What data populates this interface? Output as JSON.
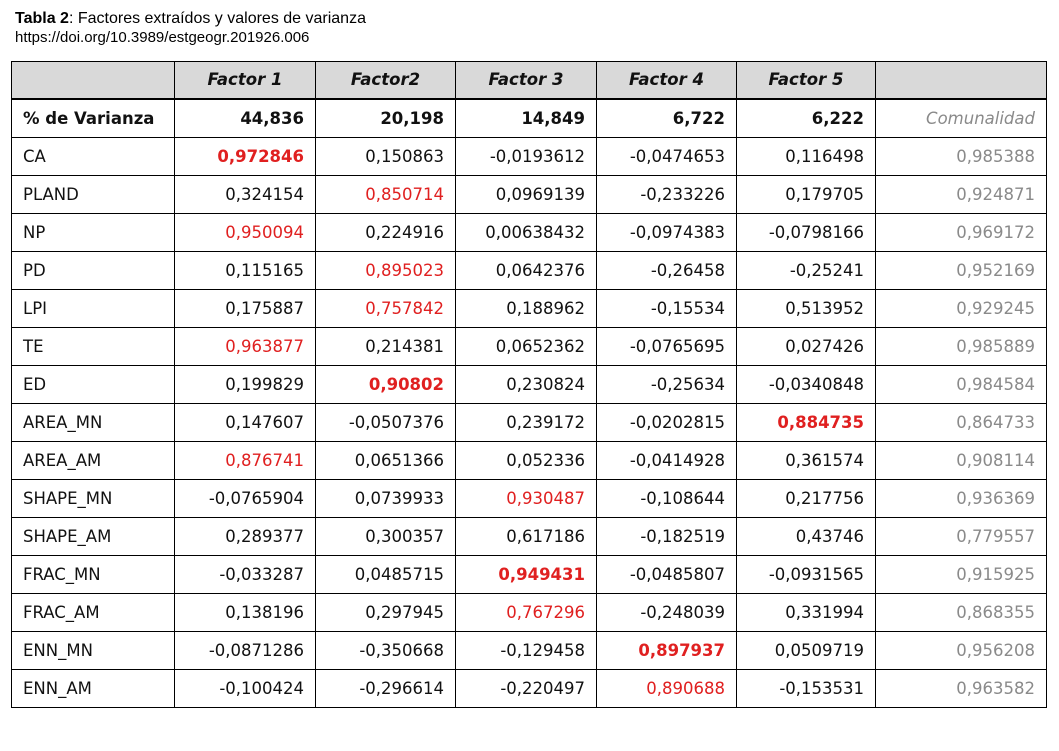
{
  "caption": {
    "title_bold": "Tabla 2",
    "title_rest": ": Factores extraídos y valores de varianza",
    "doi": "https://doi.org/10.3989/estgeogr.201926.006"
  },
  "table": {
    "headers": [
      "",
      "Factor 1",
      "Factor2",
      "Factor 3",
      "Factor 4",
      "Factor 5",
      ""
    ],
    "variance_row": {
      "label": "% de Varianza",
      "values": [
        "44,836",
        "20,198",
        "14,849",
        "6,722",
        "6,222"
      ],
      "communality_label": "Comunalidad"
    },
    "rows": [
      {
        "label": "CA",
        "values": [
          "0,972846",
          "0,150863",
          "-0,0193612",
          "-0,0474653",
          "0,116498"
        ],
        "communality": "0,985388"
      },
      {
        "label": "PLAND",
        "values": [
          "0,324154",
          "0,850714",
          "0,0969139",
          "-0,233226",
          "0,179705"
        ],
        "communality": "0,924871"
      },
      {
        "label": "NP",
        "values": [
          "0,950094",
          "0,224916",
          "0,00638432",
          "-0,0974383",
          "-0,0798166"
        ],
        "communality": "0,969172"
      },
      {
        "label": "PD",
        "values": [
          "0,115165",
          "0,895023",
          "0,0642376",
          "-0,26458",
          "-0,25241"
        ],
        "communality": "0,952169"
      },
      {
        "label": "LPI",
        "values": [
          "0,175887",
          "0,757842",
          "0,188962",
          "-0,15534",
          "0,513952"
        ],
        "communality": "0,929245"
      },
      {
        "label": "TE",
        "values": [
          "0,963877",
          "0,214381",
          "0,0652362",
          "-0,0765695",
          "0,027426"
        ],
        "communality": "0,985889"
      },
      {
        "label": "ED",
        "values": [
          "0,199829",
          "0,90802",
          "0,230824",
          "-0,25634",
          "-0,0340848"
        ],
        "communality": "0,984584"
      },
      {
        "label": "AREA_MN",
        "values": [
          "0,147607",
          "-0,0507376",
          "0,239172",
          "-0,0202815",
          "0,884735"
        ],
        "communality": "0,864733"
      },
      {
        "label": "AREA_AM",
        "values": [
          "0,876741",
          "0,0651366",
          "0,052336",
          "-0,0414928",
          "0,361574"
        ],
        "communality": "0,908114"
      },
      {
        "label": "SHAPE_MN",
        "values": [
          "-0,0765904",
          "0,0739933",
          "0,930487",
          "-0,108644",
          "0,217756"
        ],
        "communality": "0,936369"
      },
      {
        "label": "SHAPE_AM",
        "values": [
          "0,289377",
          "0,300357",
          "0,617186",
          "-0,182519",
          "0,43746"
        ],
        "communality": "0,779557"
      },
      {
        "label": "FRAC_MN",
        "values": [
          "-0,033287",
          "0,0485715",
          "0,949431",
          "-0,0485807",
          "-0,0931565"
        ],
        "communality": "0,915925"
      },
      {
        "label": "FRAC_AM",
        "values": [
          "0,138196",
          "0,297945",
          "0,767296",
          "-0,248039",
          "0,331994"
        ],
        "communality": "0,868355"
      },
      {
        "label": "ENN_MN",
        "values": [
          "-0,0871286",
          "-0,350668",
          "-0,129458",
          "0,897937",
          "0,0509719"
        ],
        "communality": "0,956208"
      },
      {
        "label": "ENN_AM",
        "values": [
          "-0,100424",
          "-0,296614",
          "-0,220497",
          "0,890688",
          "-0,153531"
        ],
        "communality": "0,963582"
      }
    ],
    "highlights": {
      "CA": [
        0,
        "bold"
      ],
      "PLAND": [
        1,
        "normal"
      ],
      "NP": [
        0,
        "normal"
      ],
      "PD": [
        1,
        "normal"
      ],
      "LPI": [
        1,
        "normal"
      ],
      "TE": [
        0,
        "normal"
      ],
      "ED": [
        1,
        "bold"
      ],
      "AREA_MN": [
        4,
        "bold"
      ],
      "AREA_AM": [
        0,
        "normal"
      ],
      "SHAPE_MN": [
        2,
        "normal"
      ],
      "FRAC_MN": [
        2,
        "bold"
      ],
      "FRAC_AM": [
        2,
        "normal"
      ],
      "ENN_MN": [
        3,
        "bold"
      ],
      "ENN_AM": [
        3,
        "normal"
      ]
    },
    "colors": {
      "highlight": "#e02020",
      "communality": "#8a8a8a",
      "header_bg": "#d9d9d9"
    }
  }
}
